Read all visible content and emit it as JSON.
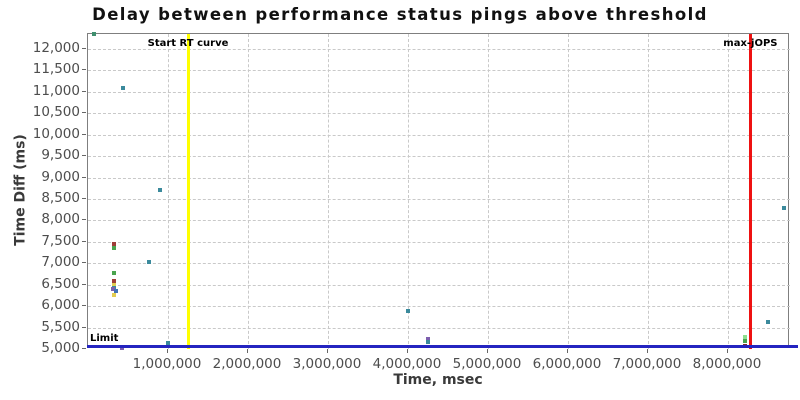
{
  "chart_data": {
    "type": "scatter",
    "title": "Delay between performance status pings above threshold",
    "xlabel": "Time, msec",
    "ylabel": "Time Diff (ms)",
    "xlim": [
      0,
      8775000
    ],
    "ylim": [
      5000,
      12350
    ],
    "x_ticks": [
      1000000,
      2000000,
      3000000,
      4000000,
      5000000,
      6000000,
      7000000,
      8000000
    ],
    "y_ticks": [
      5000,
      5500,
      6000,
      6500,
      7000,
      7500,
      8000,
      8500,
      9000,
      9500,
      10000,
      10500,
      11000,
      11500,
      12000
    ],
    "grid": true,
    "legend": "none",
    "series_colors": {
      "teal": "#3b8a9c",
      "seagreen": "#3f8f6e",
      "green": "#4aa44e",
      "firebrick": "#9e3d38",
      "yellow": "#e2cc52",
      "purple": "#7d5fae",
      "blue": "#4272b8",
      "lightgreen": "#8fdf8f",
      "maroon": "#7e2c2c"
    },
    "points": [
      {
        "x": 75000,
        "y": 12340,
        "c": "seagreen"
      },
      {
        "x": 440000,
        "y": 11090,
        "c": "teal"
      },
      {
        "x": 900000,
        "y": 8700,
        "c": "teal"
      },
      {
        "x": 760000,
        "y": 7030,
        "c": "teal"
      },
      {
        "x": 325000,
        "y": 7450,
        "c": "firebrick"
      },
      {
        "x": 325000,
        "y": 7360,
        "c": "green"
      },
      {
        "x": 325000,
        "y": 6780,
        "c": "green"
      },
      {
        "x": 325000,
        "y": 6590,
        "c": "firebrick"
      },
      {
        "x": 325000,
        "y": 6500,
        "c": "yellow"
      },
      {
        "x": 325000,
        "y": 6430,
        "c": "teal"
      },
      {
        "x": 310000,
        "y": 6390,
        "c": "purple"
      },
      {
        "x": 350000,
        "y": 6350,
        "c": "blue"
      },
      {
        "x": 325000,
        "y": 6260,
        "c": "yellow"
      },
      {
        "x": 425000,
        "y": 5030,
        "c": "purple"
      },
      {
        "x": 1000000,
        "y": 5130,
        "c": "teal"
      },
      {
        "x": 4000000,
        "y": 5890,
        "c": "teal"
      },
      {
        "x": 4250000,
        "y": 5230,
        "c": "purple"
      },
      {
        "x": 4250000,
        "y": 5160,
        "c": "teal"
      },
      {
        "x": 8210000,
        "y": 5270,
        "c": "lightgreen"
      },
      {
        "x": 8210000,
        "y": 5180,
        "c": "green"
      },
      {
        "x": 8210000,
        "y": 5080,
        "c": "maroon"
      },
      {
        "x": 8500000,
        "y": 5620,
        "c": "teal"
      },
      {
        "x": 8700000,
        "y": 8300,
        "c": "teal"
      }
    ],
    "markers": {
      "vlines": [
        {
          "x": 1250000,
          "label": "Start RT curve",
          "color": "#ffff00"
        },
        {
          "x": 8280000,
          "label": "max-jOPS",
          "color": "#ee1111"
        }
      ],
      "hlines": [
        {
          "y": 5000,
          "label": "Limit",
          "color": "#2424c0"
        }
      ]
    }
  }
}
